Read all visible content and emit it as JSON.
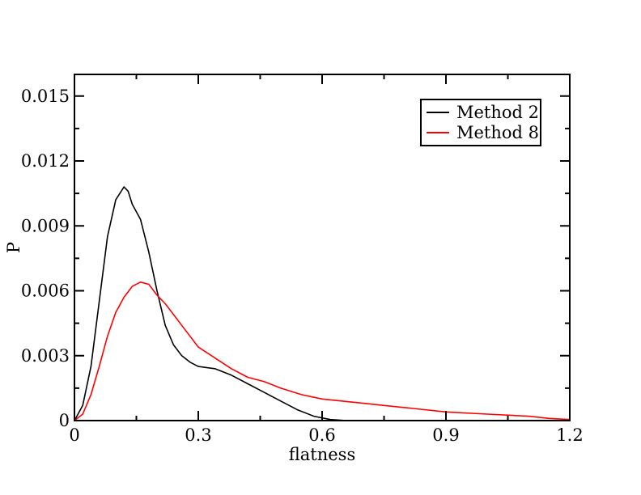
{
  "chart_data": {
    "type": "line",
    "title": "",
    "xlabel": "flatness",
    "ylabel": "P",
    "xlim": [
      0,
      1.2
    ],
    "ylim": [
      0,
      0.016
    ],
    "x_ticks": [
      0,
      0.3,
      0.6,
      0.9,
      1.2
    ],
    "x_tick_labels": [
      "0",
      "0.3",
      "0.6",
      "0.9",
      "1.2"
    ],
    "y_ticks": [
      0,
      0.003,
      0.006,
      0.009,
      0.012,
      0.015
    ],
    "y_tick_labels": [
      "0",
      "0.003",
      "0.006",
      "0.009",
      "0.012",
      "0.015"
    ],
    "grid": false,
    "legend_position": "top-right",
    "series": [
      {
        "name": "Method 2",
        "color": "#000000",
        "x": [
          0.0,
          0.02,
          0.04,
          0.06,
          0.08,
          0.1,
          0.12,
          0.13,
          0.14,
          0.16,
          0.18,
          0.2,
          0.22,
          0.24,
          0.26,
          0.28,
          0.3,
          0.34,
          0.38,
          0.42,
          0.46,
          0.5,
          0.54,
          0.58,
          0.62,
          0.66,
          0.7,
          0.74,
          0.8,
          0.9,
          1.0,
          1.1,
          1.2
        ],
        "y": [
          0.0,
          0.0007,
          0.0025,
          0.0055,
          0.0085,
          0.0102,
          0.0108,
          0.0106,
          0.01,
          0.0093,
          0.0078,
          0.006,
          0.0044,
          0.0035,
          0.003,
          0.0027,
          0.0025,
          0.0024,
          0.0021,
          0.0017,
          0.0013,
          0.0009,
          0.0005,
          0.0002,
          5e-05,
          0.0,
          0.0,
          0.0,
          0.0,
          0.0,
          0.0,
          0.0,
          0.0
        ]
      },
      {
        "name": "Method 8",
        "color": "#ff0000",
        "x": [
          0.0,
          0.02,
          0.04,
          0.06,
          0.08,
          0.1,
          0.12,
          0.14,
          0.16,
          0.18,
          0.2,
          0.22,
          0.24,
          0.26,
          0.28,
          0.3,
          0.34,
          0.38,
          0.42,
          0.46,
          0.5,
          0.55,
          0.6,
          0.65,
          0.7,
          0.75,
          0.8,
          0.9,
          1.0,
          1.1,
          1.15,
          1.2
        ],
        "y": [
          0.0,
          0.0003,
          0.0012,
          0.0025,
          0.0039,
          0.005,
          0.0057,
          0.0062,
          0.0064,
          0.0063,
          0.0058,
          0.0054,
          0.0049,
          0.0044,
          0.0039,
          0.0034,
          0.0029,
          0.0024,
          0.002,
          0.0018,
          0.0015,
          0.0012,
          0.001,
          0.0009,
          0.0008,
          0.0007,
          0.0006,
          0.0004,
          0.0003,
          0.0002,
          0.0001,
          5e-05
        ]
      }
    ]
  }
}
